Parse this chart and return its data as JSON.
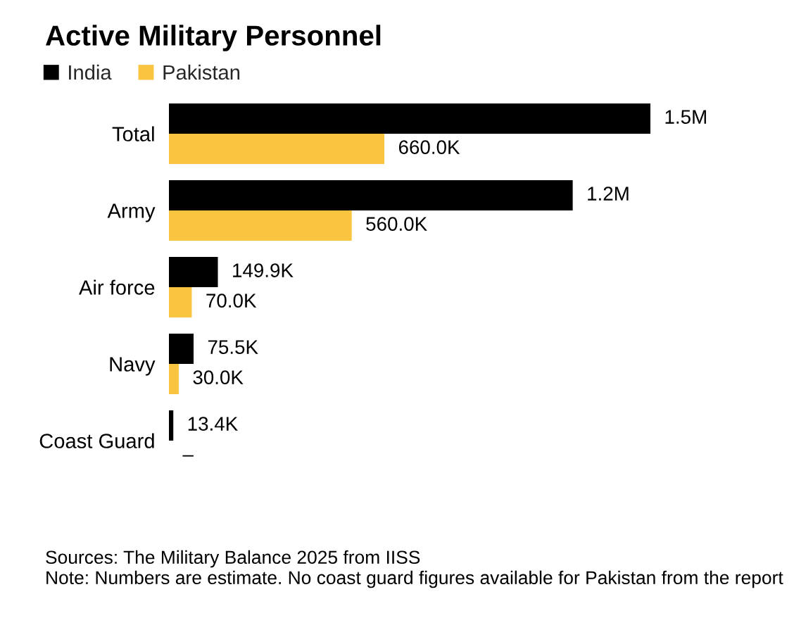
{
  "chart_data": {
    "type": "bar",
    "orientation": "horizontal",
    "title": "Active Military Personnel",
    "categories": [
      "Total",
      "Army",
      "Air force",
      "Navy",
      "Coast Guard"
    ],
    "series": [
      {
        "name": "India",
        "color": "#000000",
        "values": [
          1475000,
          1237000,
          149900,
          75500,
          13400
        ],
        "value_labels": [
          "1.5M",
          "1.2M",
          "149.9K",
          "75.5K",
          "13.4K"
        ]
      },
      {
        "name": "Pakistan",
        "color": "#f9c440",
        "values": [
          660000,
          560000,
          70000,
          30000,
          null
        ],
        "value_labels": [
          "660.0K",
          "560.0K",
          "70.0K",
          "30.0K",
          "–"
        ]
      }
    ],
    "legend": "top left",
    "tick_labels": "y",
    "annotations": [
      "Sources: The Military Balance 2025 from IISS",
      "Note: Numbers are estimate. No coast guard figures available for Pakistan from the report"
    ]
  }
}
